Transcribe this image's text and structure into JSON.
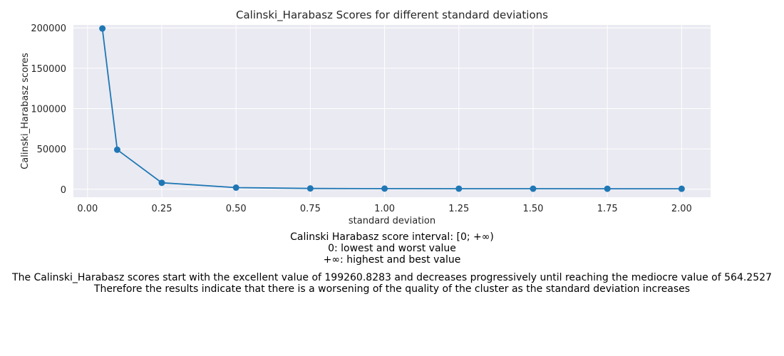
{
  "chart_data": {
    "type": "line",
    "title": "Calinski_Harabasz Scores for different standard deviations",
    "xlabel": "standard deviation",
    "ylabel": "Calinski_Harabasz scores",
    "x": [
      0.05,
      0.1,
      0.25,
      0.5,
      0.75,
      1.0,
      1.25,
      1.5,
      1.75,
      2.0
    ],
    "series": [
      {
        "values": [
          199260.8283,
          49000,
          8000,
          2000,
          1000,
          800,
          700,
          650,
          600,
          564.2527
        ]
      }
    ],
    "xlim": [
      -0.0475,
      2.0975
    ],
    "ylim": [
      -9900,
      203700
    ],
    "xticks": [
      0.0,
      0.25,
      0.5,
      0.75,
      1.0,
      1.25,
      1.5,
      1.75,
      2.0
    ],
    "xtick_labels": [
      "0.00",
      "0.25",
      "0.50",
      "0.75",
      "1.00",
      "1.25",
      "1.50",
      "1.75",
      "2.00"
    ],
    "yticks": [
      0,
      50000,
      100000,
      150000,
      200000
    ],
    "ytick_labels": [
      "0",
      "50000",
      "100000",
      "150000",
      "200000"
    ],
    "grid": true,
    "colors": {
      "line": "#1f77b4",
      "plot_background": "#eaeaf2",
      "grid": "#ffffff"
    }
  },
  "captions": {
    "interval": [
      "Calinski Harabasz score interval: [0; +∞)",
      "0: lowest and worst value",
      "+∞: highest and best value"
    ],
    "conclusion": [
      "The Calinski_Harabasz scores start with the excellent value of 199260.8283 and decreases progressively until reaching the mediocre value of 564.2527",
      "Therefore the results indicate that there is a worsening of the quality of the cluster as the standard deviation increases"
    ]
  }
}
